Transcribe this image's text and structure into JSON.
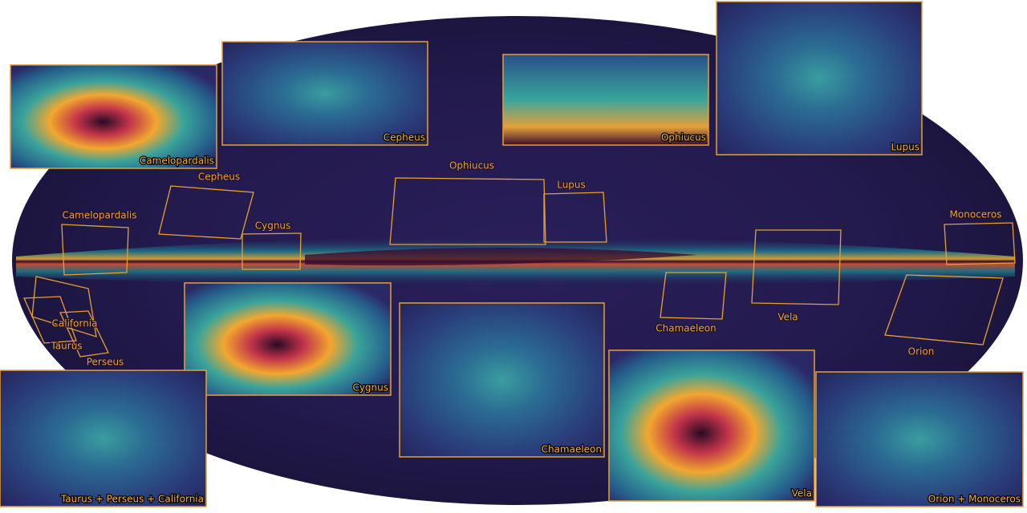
{
  "map_labels": [
    "Cepheus",
    "Ophiucus",
    "Lupus",
    "Camelopardalis",
    "Cygnus",
    "Monoceros",
    "California",
    "Taurus",
    "Perseus",
    "Chamaeleon",
    "Vela",
    "Orion"
  ],
  "insets": [
    "Camelopardalis",
    "Cepheus",
    "Ophiucus",
    "Lupus",
    "Cygnus",
    "Chamaeleon",
    "Vela",
    "Taurus + Perseus + California",
    "Orion + Monoceros"
  ]
}
